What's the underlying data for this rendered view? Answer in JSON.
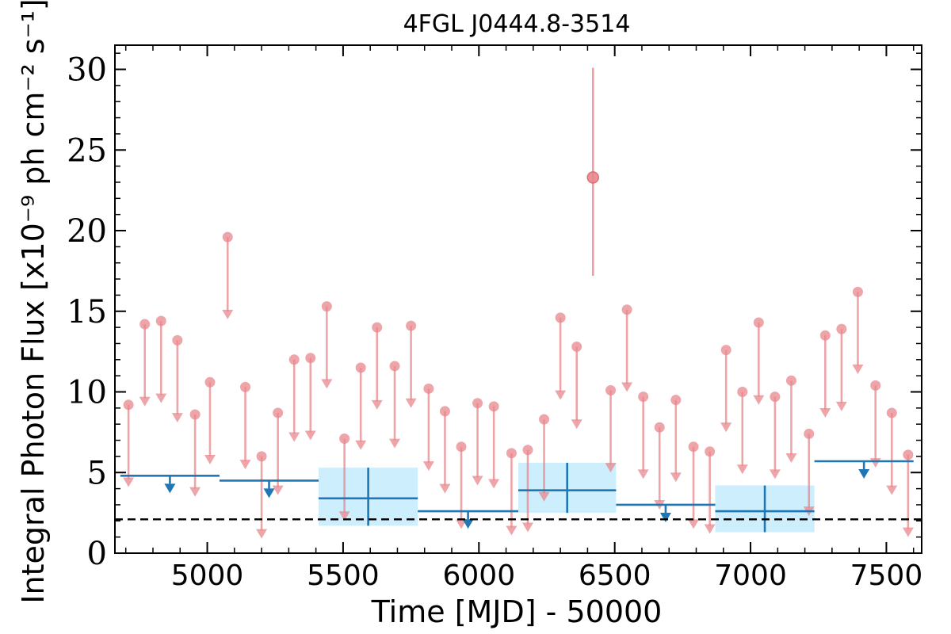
{
  "chart_data": {
    "type": "scatter",
    "title": "4FGL J0444.8-3514",
    "xlabel": "Time [MJD] - 50000",
    "ylabel": "Integral Photon Flux [x10⁻⁹ ph cm⁻² s⁻¹]",
    "xlim": [
      4660,
      7630
    ],
    "ylim": [
      0,
      31.5
    ],
    "xticks": [
      5000,
      5500,
      6000,
      6500,
      7000,
      7500
    ],
    "xtick_labels": [
      "5000",
      "5500",
      "6000",
      "6500",
      "7000",
      "7500"
    ],
    "yticks": [
      0,
      5,
      10,
      15,
      20,
      25,
      30
    ],
    "ytick_labels": [
      "0",
      "5",
      "10",
      "15",
      "20",
      "25",
      "30"
    ],
    "grid": false,
    "colors": {
      "short_bins": "#e8878c",
      "long_bins": "#1f77b4",
      "error_box": "#cdeefc",
      "mean_line": "#000000"
    },
    "short_bins_upper_limits": [
      {
        "x": 4710,
        "y": 9.2
      },
      {
        "x": 4770,
        "y": 14.2
      },
      {
        "x": 4830,
        "y": 14.4
      },
      {
        "x": 4890,
        "y": 13.2
      },
      {
        "x": 4955,
        "y": 8.6
      },
      {
        "x": 5010,
        "y": 10.6
      },
      {
        "x": 5075,
        "y": 19.6
      },
      {
        "x": 5140,
        "y": 10.3
      },
      {
        "x": 5200,
        "y": 6.0
      },
      {
        "x": 5260,
        "y": 8.7
      },
      {
        "x": 5320,
        "y": 12.0
      },
      {
        "x": 5380,
        "y": 12.1
      },
      {
        "x": 5440,
        "y": 15.3
      },
      {
        "x": 5505,
        "y": 7.1
      },
      {
        "x": 5565,
        "y": 11.5
      },
      {
        "x": 5625,
        "y": 14.0
      },
      {
        "x": 5690,
        "y": 11.6
      },
      {
        "x": 5750,
        "y": 14.1
      },
      {
        "x": 5815,
        "y": 10.2
      },
      {
        "x": 5875,
        "y": 8.8
      },
      {
        "x": 5935,
        "y": 6.6
      },
      {
        "x": 5995,
        "y": 9.3
      },
      {
        "x": 6055,
        "y": 9.1
      },
      {
        "x": 6120,
        "y": 6.2
      },
      {
        "x": 6180,
        "y": 6.4
      },
      {
        "x": 6240,
        "y": 8.3
      },
      {
        "x": 6300,
        "y": 14.6
      },
      {
        "x": 6360,
        "y": 12.8
      },
      {
        "x": 6485,
        "y": 10.1
      },
      {
        "x": 6545,
        "y": 15.1
      },
      {
        "x": 6605,
        "y": 9.7
      },
      {
        "x": 6665,
        "y": 7.8
      },
      {
        "x": 6725,
        "y": 9.5
      },
      {
        "x": 6790,
        "y": 6.6
      },
      {
        "x": 6850,
        "y": 6.3
      },
      {
        "x": 6910,
        "y": 12.6
      },
      {
        "x": 6970,
        "y": 10.0
      },
      {
        "x": 7030,
        "y": 14.3
      },
      {
        "x": 7090,
        "y": 9.7
      },
      {
        "x": 7150,
        "y": 10.7
      },
      {
        "x": 7215,
        "y": 7.4
      },
      {
        "x": 7275,
        "y": 13.5
      },
      {
        "x": 7335,
        "y": 13.9
      },
      {
        "x": 7395,
        "y": 16.2
      },
      {
        "x": 7460,
        "y": 10.4
      },
      {
        "x": 7520,
        "y": 8.7
      },
      {
        "x": 7580,
        "y": 6.1
      }
    ],
    "short_bins_detections": [
      {
        "x": 6420,
        "y": 23.3,
        "y_low": 17.2,
        "y_high": 30.1
      }
    ],
    "long_bins_upper_limits": [
      {
        "x_start": 4680,
        "x_end": 5045,
        "y": 4.8
      },
      {
        "x_start": 5045,
        "x_end": 5410,
        "y": 4.5
      },
      {
        "x_start": 5775,
        "x_end": 6145,
        "y": 2.6
      },
      {
        "x_start": 6505,
        "x_end": 6870,
        "y": 3.0
      },
      {
        "x_start": 7235,
        "x_end": 7600,
        "y": 5.7
      }
    ],
    "long_bins_detections": [
      {
        "x_start": 5410,
        "x_end": 5775,
        "y": 3.4,
        "y_low": 1.7,
        "y_high": 5.3
      },
      {
        "x_start": 6145,
        "x_end": 6505,
        "y": 3.9,
        "y_low": 2.5,
        "y_high": 5.6
      },
      {
        "x_start": 6870,
        "x_end": 7235,
        "y": 2.6,
        "y_low": 1.3,
        "y_high": 4.2
      }
    ],
    "mean_flux": 2.1
  }
}
